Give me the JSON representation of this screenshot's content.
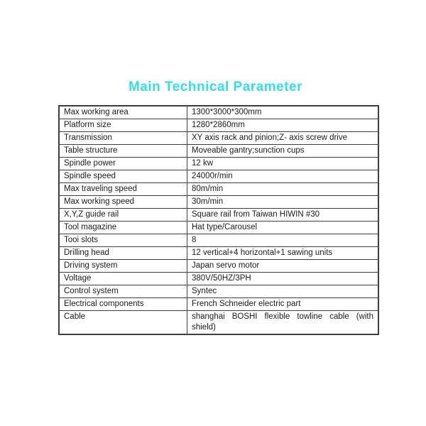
{
  "title": "Main Technical Parameter",
  "colors": {
    "title_cyan": "#2ee1e8",
    "border": "#3f3f3f",
    "text": "#1c1c1c",
    "background": "#ffffff"
  },
  "table": {
    "rows": [
      {
        "label": "Max working area",
        "value": "1300*3000*300mm"
      },
      {
        "label": "Platform size",
        "value": "1280*2860mm"
      },
      {
        "label": "Transmission",
        "value": "XY axis rack and pinion;Z- axis screw drive"
      },
      {
        "label": "Table structure",
        "value": "Moveable gantry;sunction cups"
      },
      {
        "label": "Spindle power",
        "value": "12 kw"
      },
      {
        "label": "Spindle speed",
        "value": "24000r/min"
      },
      {
        "label": "Max traveling speed",
        "value": "80m/min"
      },
      {
        "label": "Max working speed",
        "value": "30m/min"
      },
      {
        "label": "X,Y,Z guide rail",
        "value": "Square rail from Taiwan HIWIN #30"
      },
      {
        "label": "Tool magazine",
        "value": "Hat type/Carousel"
      },
      {
        "label": "Tooi slots",
        "value": "8"
      },
      {
        "label": "Drilling head",
        "value": "12 vertical+4 horizontal+1 sawing units"
      },
      {
        "label": "Driving system",
        "value": "Japan servo motor"
      },
      {
        "label": "Voltage",
        "value": "380V/50HZ/3PH"
      },
      {
        "label": "Control system",
        "value": "Syntec"
      },
      {
        "label": "Electrical components",
        "value": "French Schneider electric part"
      },
      {
        "label": "Cable",
        "value": "shanghai BOSHI flexible towline cable (with shield)"
      }
    ]
  }
}
